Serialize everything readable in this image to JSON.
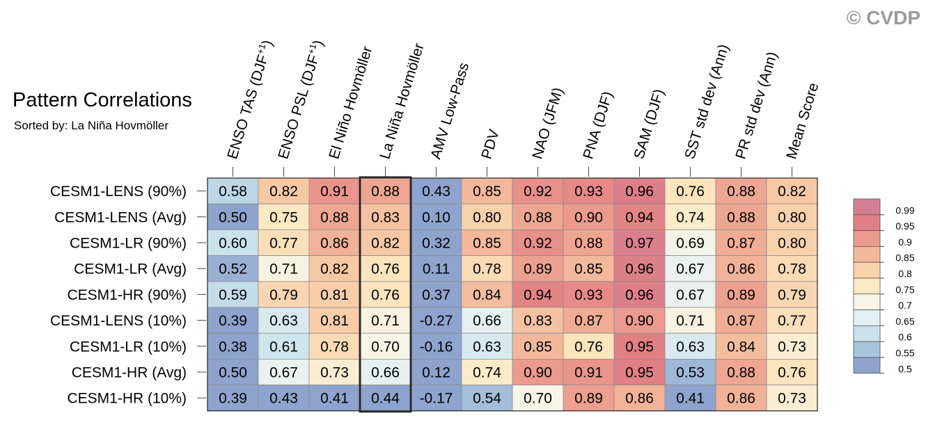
{
  "watermark": "© CVDP",
  "chart_data": {
    "type": "heatmap",
    "title": "Pattern Correlations",
    "subtitle": "Sorted by: La Niña Hovmöller",
    "highlight_column": 3,
    "columns": [
      {
        "base": "ENSO TAS (DJF",
        "sup": "+1",
        "tail": ")"
      },
      {
        "base": "ENSO PSL (DJF",
        "sup": "+1",
        "tail": ")"
      },
      {
        "base": "El Niño Hovmöller",
        "sup": "",
        "tail": ""
      },
      {
        "base": "La Niña Hovmöller",
        "sup": "",
        "tail": ""
      },
      {
        "base": "AMV Low-Pass",
        "sup": "",
        "tail": ""
      },
      {
        "base": "PDV",
        "sup": "",
        "tail": ""
      },
      {
        "base": "NAO (JFM)",
        "sup": "",
        "tail": ""
      },
      {
        "base": "PNA (DJF)",
        "sup": "",
        "tail": ""
      },
      {
        "base": "SAM (DJF)",
        "sup": "",
        "tail": ""
      },
      {
        "base": "SST std dev (Ann)",
        "sup": "",
        "tail": ""
      },
      {
        "base": "PR std dev (Ann)",
        "sup": "",
        "tail": ""
      },
      {
        "base": "Mean Score",
        "sup": "",
        "tail": ""
      }
    ],
    "rows": [
      "CESM1-LENS (90%)",
      "CESM1-LENS (Avg)",
      "CESM1-LR (90%)",
      "CESM1-LR (Avg)",
      "CESM1-HR (90%)",
      "CESM1-LENS (10%)",
      "CESM1-LR (10%)",
      "CESM1-HR (Avg)",
      "CESM1-HR (10%)"
    ],
    "values": [
      [
        "0.58",
        "0.82",
        "0.91",
        "0.88",
        "0.43",
        "0.85",
        "0.92",
        "0.93",
        "0.96",
        "0.76",
        "0.88",
        "0.82"
      ],
      [
        "0.50",
        "0.75",
        "0.88",
        "0.83",
        "0.10",
        "0.80",
        "0.88",
        "0.90",
        "0.94",
        "0.74",
        "0.88",
        "0.80"
      ],
      [
        "0.60",
        "0.77",
        "0.86",
        "0.82",
        "0.32",
        "0.85",
        "0.92",
        "0.88",
        "0.97",
        "0.69",
        "0.87",
        "0.80"
      ],
      [
        "0.52",
        "0.71",
        "0.82",
        "0.76",
        "0.11",
        "0.78",
        "0.89",
        "0.85",
        "0.96",
        "0.67",
        "0.86",
        "0.78"
      ],
      [
        "0.59",
        "0.79",
        "0.81",
        "0.76",
        "0.37",
        "0.84",
        "0.94",
        "0.93",
        "0.96",
        "0.67",
        "0.89",
        "0.79"
      ],
      [
        "0.39",
        "0.63",
        "0.81",
        "0.71",
        "-0.27",
        "0.66",
        "0.83",
        "0.87",
        "0.90",
        "0.71",
        "0.87",
        "0.77"
      ],
      [
        "0.38",
        "0.61",
        "0.78",
        "0.70",
        "-0.16",
        "0.63",
        "0.85",
        "0.76",
        "0.95",
        "0.63",
        "0.84",
        "0.73"
      ],
      [
        "0.50",
        "0.67",
        "0.73",
        "0.66",
        "0.12",
        "0.74",
        "0.90",
        "0.91",
        "0.95",
        "0.53",
        "0.88",
        "0.76"
      ],
      [
        "0.39",
        "0.43",
        "0.41",
        "0.44",
        "-0.17",
        "0.54",
        "0.70",
        "0.89",
        "0.86",
        "0.41",
        "0.86",
        "0.73"
      ]
    ],
    "colorbar": {
      "labels": [
        "0.99",
        "0.95",
        "0.9",
        "0.85",
        "0.8",
        "0.75",
        "0.7",
        "0.65",
        "0.6",
        "0.55",
        "0.5"
      ],
      "colors": [
        "#d57f95",
        "#e07f84",
        "#eb9a8d",
        "#f3b89a",
        "#f9d2ab",
        "#fde8c2",
        "#f6f5e8",
        "#e2eff3",
        "#cae2ec",
        "#a7c5dd",
        "#8ea3cd"
      ]
    }
  }
}
